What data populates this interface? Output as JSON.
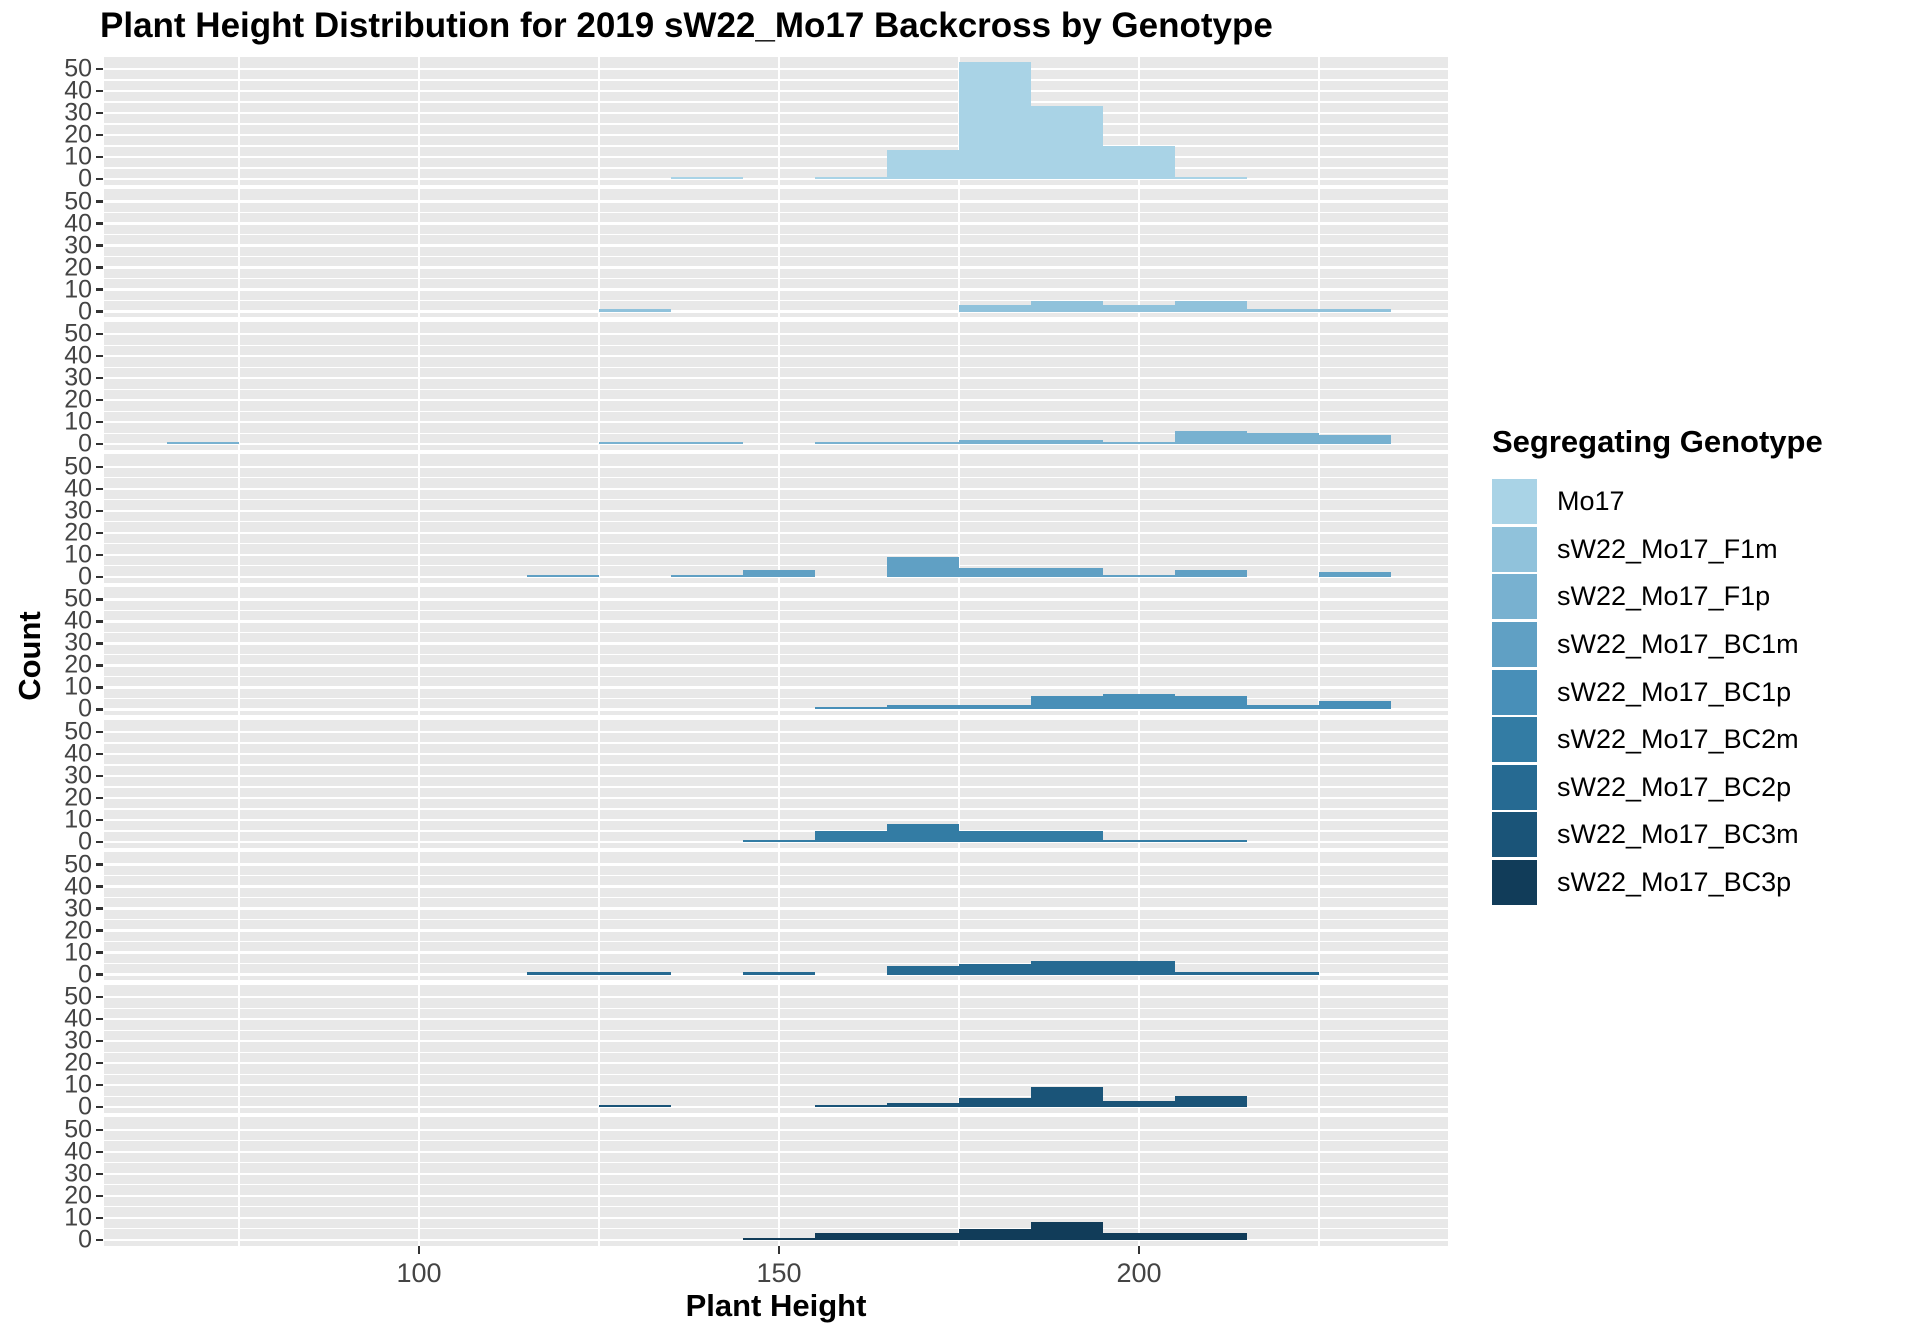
{
  "chart_data": {
    "type": "bar",
    "subtype": "faceted-histogram",
    "title": "Plant Height Distribution for 2019 sW22_Mo17 Backcross by Genotype",
    "xlabel": "Plant Height",
    "ylabel": "Count",
    "legend_title": "Segregating Genotype",
    "x_ticks": [
      100,
      150,
      200
    ],
    "y_ticks": [
      0,
      10,
      20,
      30,
      40,
      50
    ],
    "x_minor_gridlines": [
      75,
      125,
      175,
      225
    ],
    "y_minor_gridlines": [
      5,
      15,
      25,
      35,
      45
    ],
    "xlim": [
      56.5,
      243.5
    ],
    "ylim": [
      0,
      55.7
    ],
    "binwidth": 10,
    "grid": true,
    "legend_position": "right",
    "colors": {
      "panel_background": "#E8E8E8",
      "gridline": "#FFFFFF",
      "tick_mark": "#333333",
      "tick_label": "#444444"
    },
    "series": [
      {
        "name": "Mo17",
        "color": "#A9D3E6",
        "bins": [
          [
            140,
            1
          ],
          [
            160,
            1
          ],
          [
            170,
            13
          ],
          [
            180,
            53
          ],
          [
            190,
            33
          ],
          [
            200,
            15
          ],
          [
            210,
            1
          ]
        ]
      },
      {
        "name": "sW22_Mo17_F1m",
        "color": "#90C2DB",
        "bins": [
          [
            130,
            1
          ],
          [
            180,
            3
          ],
          [
            190,
            5
          ],
          [
            200,
            3
          ],
          [
            210,
            5
          ],
          [
            220,
            1
          ],
          [
            230,
            1
          ]
        ]
      },
      {
        "name": "sW22_Mo17_F1p",
        "color": "#78B1D0",
        "bins": [
          [
            70,
            1
          ],
          [
            130,
            1
          ],
          [
            140,
            1
          ],
          [
            160,
            1
          ],
          [
            170,
            1
          ],
          [
            180,
            2
          ],
          [
            190,
            2
          ],
          [
            200,
            1
          ],
          [
            210,
            6
          ],
          [
            220,
            5
          ],
          [
            230,
            4
          ]
        ]
      },
      {
        "name": "sW22_Mo17_BC1m",
        "color": "#60A0C4",
        "bins": [
          [
            120,
            1
          ],
          [
            140,
            1
          ],
          [
            150,
            3
          ],
          [
            170,
            9
          ],
          [
            180,
            4
          ],
          [
            190,
            4
          ],
          [
            200,
            1
          ],
          [
            210,
            3
          ],
          [
            230,
            2
          ]
        ]
      },
      {
        "name": "sW22_Mo17_BC1p",
        "color": "#488FB8",
        "bins": [
          [
            160,
            1
          ],
          [
            170,
            2
          ],
          [
            180,
            2
          ],
          [
            190,
            6
          ],
          [
            200,
            7
          ],
          [
            210,
            6
          ],
          [
            220,
            2
          ],
          [
            230,
            4
          ]
        ]
      },
      {
        "name": "sW22_Mo17_BC2m",
        "color": "#337CA4",
        "bins": [
          [
            150,
            1
          ],
          [
            160,
            5
          ],
          [
            170,
            8
          ],
          [
            180,
            5
          ],
          [
            190,
            5
          ],
          [
            200,
            1
          ],
          [
            210,
            1
          ]
        ]
      },
      {
        "name": "sW22_Mo17_BC2p",
        "color": "#266A92",
        "bins": [
          [
            120,
            1
          ],
          [
            130,
            1
          ],
          [
            150,
            1
          ],
          [
            170,
            4
          ],
          [
            180,
            5
          ],
          [
            190,
            6
          ],
          [
            200,
            6
          ],
          [
            210,
            1
          ],
          [
            220,
            1
          ]
        ]
      },
      {
        "name": "sW22_Mo17_BC3m",
        "color": "#1A5478",
        "bins": [
          [
            130,
            1
          ],
          [
            160,
            1
          ],
          [
            170,
            2
          ],
          [
            180,
            4
          ],
          [
            190,
            9
          ],
          [
            200,
            3
          ],
          [
            210,
            5
          ]
        ]
      },
      {
        "name": "sW22_Mo17_BC3p",
        "color": "#113C59",
        "bins": [
          [
            150,
            1
          ],
          [
            160,
            3
          ],
          [
            170,
            3
          ],
          [
            180,
            5
          ],
          [
            190,
            8
          ],
          [
            200,
            3
          ],
          [
            210,
            3
          ]
        ]
      }
    ]
  }
}
